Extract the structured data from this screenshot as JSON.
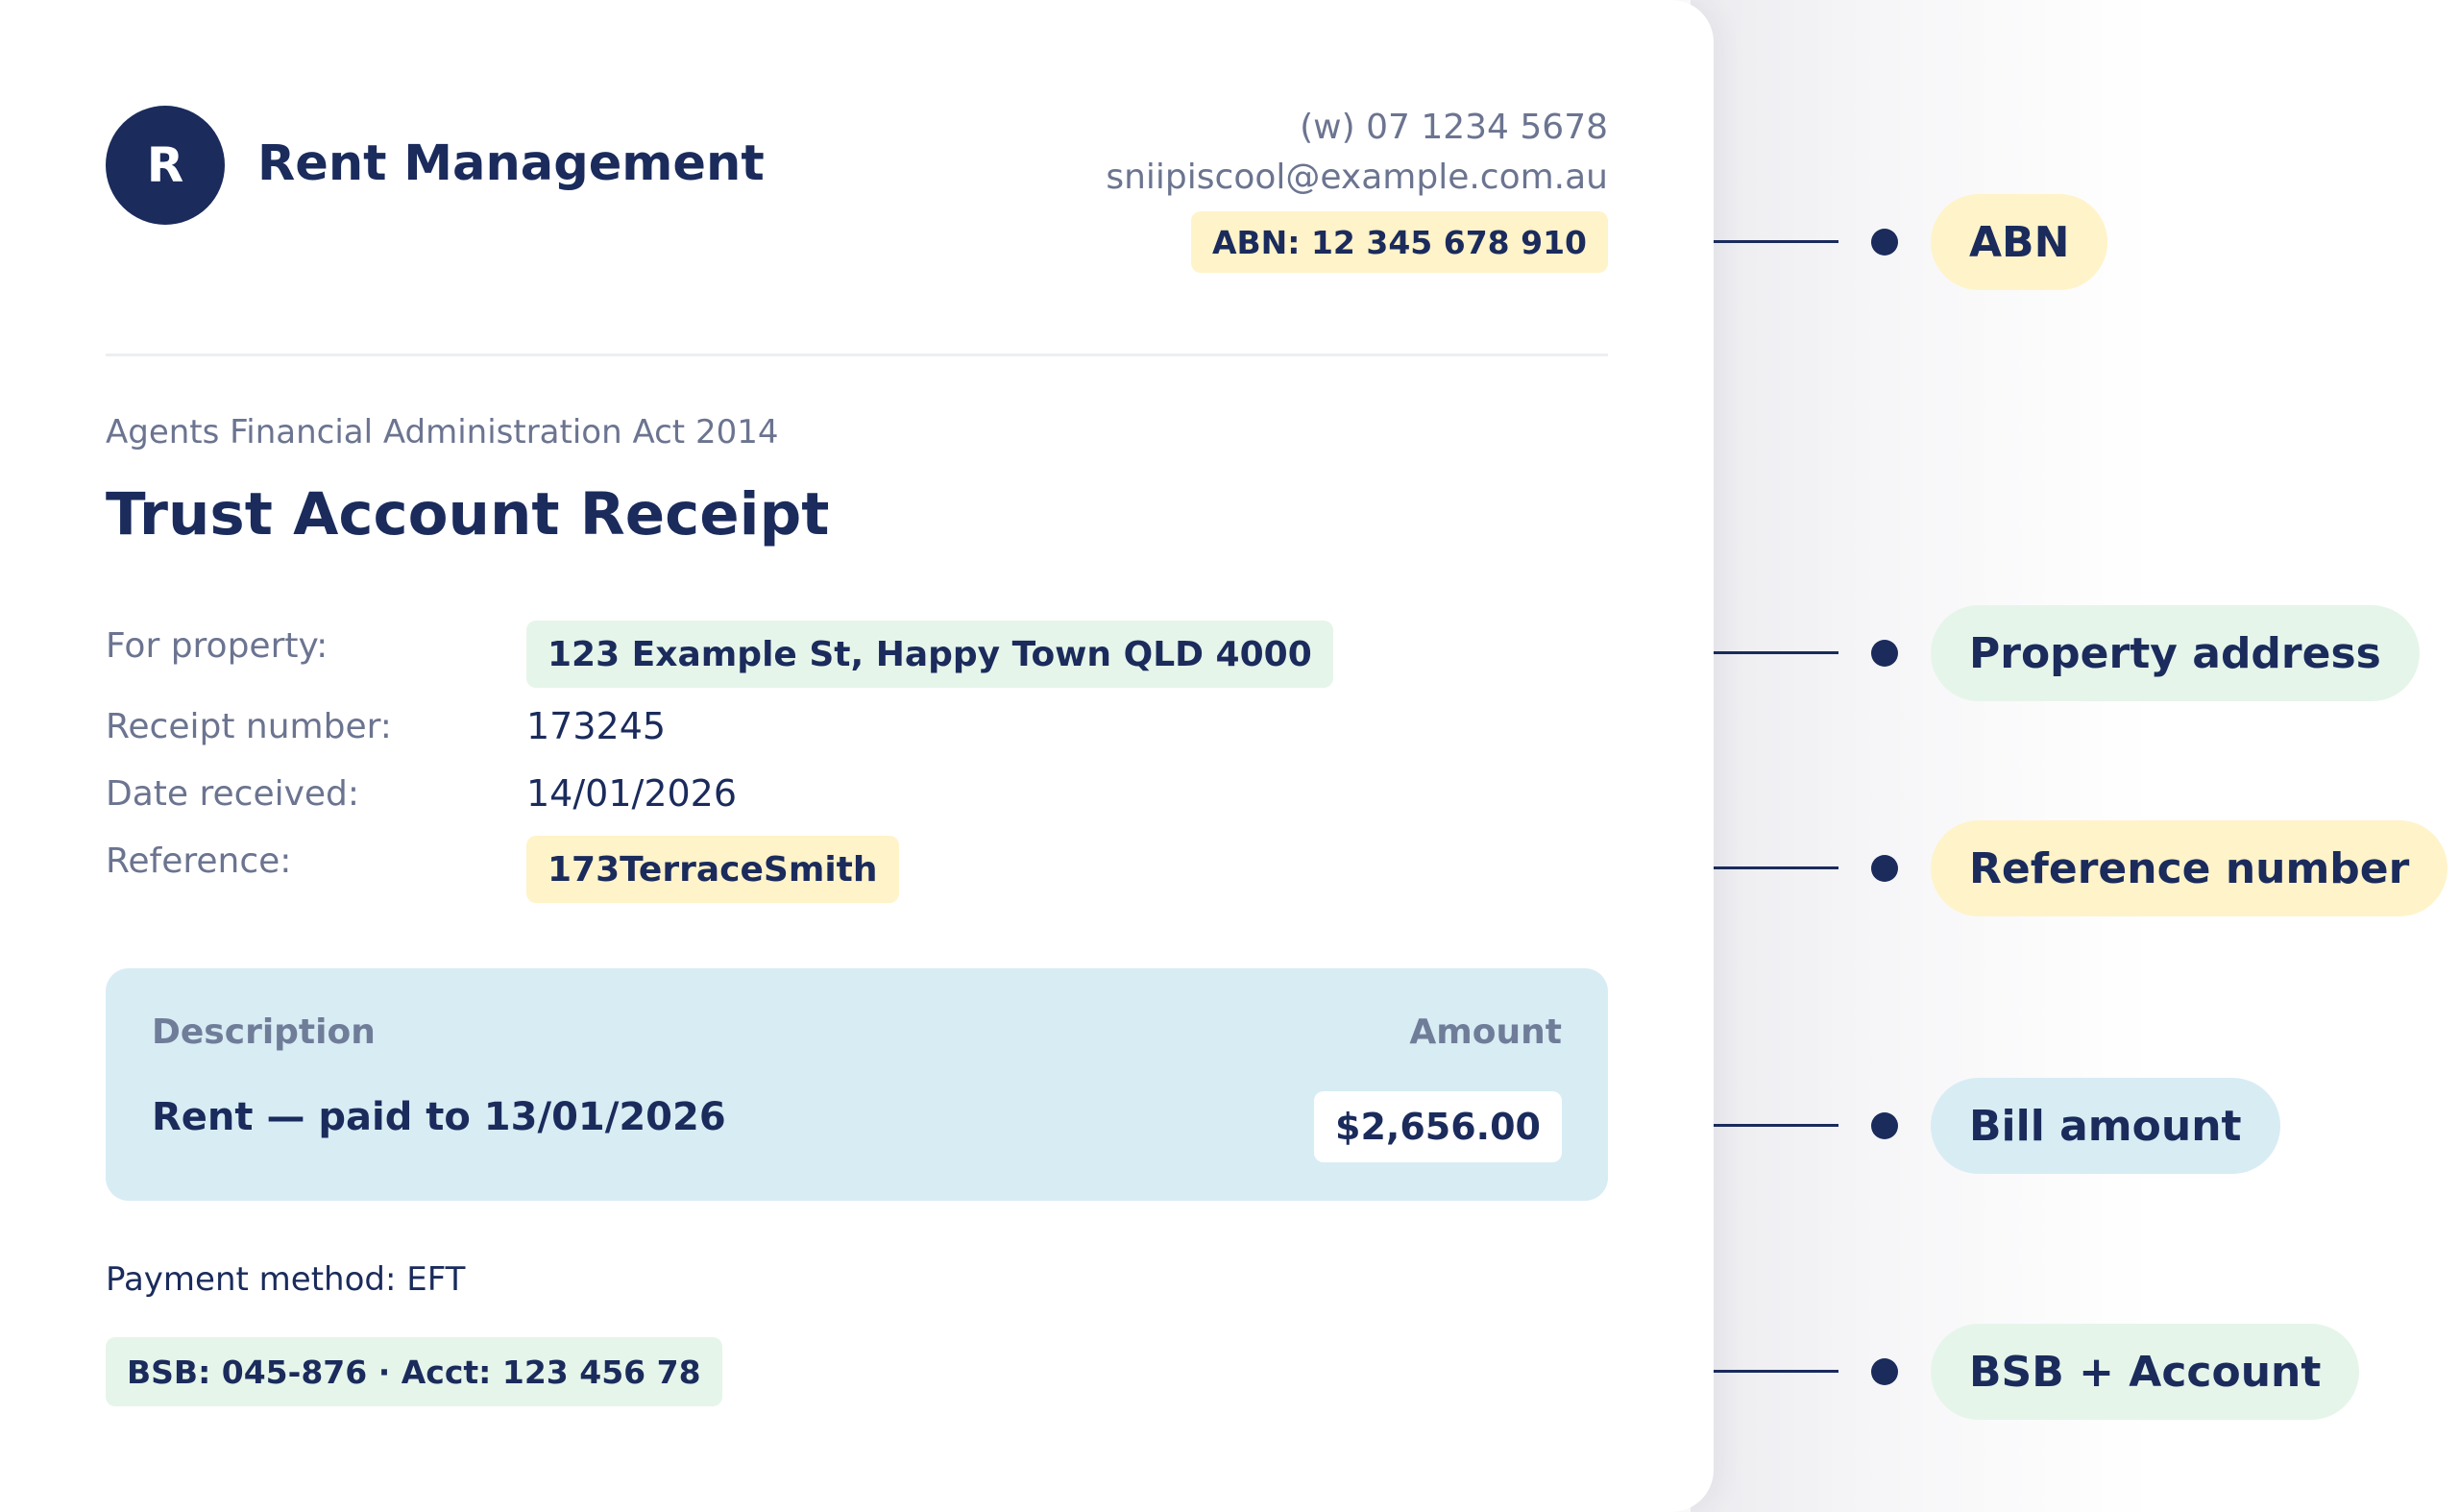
{
  "header": {
    "logo_letter": "R",
    "brand": "Rent Management",
    "phone": "(w) 07 1234 5678",
    "email": "sniipiscool@example.com.au",
    "abn": "ABN: 12 345 678 910"
  },
  "receipt": {
    "act": "Agents Financial Administration Act 2014",
    "title": "Trust Account Receipt",
    "rows": [
      {
        "label": "For property:",
        "value": "123 Example St, Happy Town QLD 4000"
      },
      {
        "label": "Receipt number:",
        "value": "173245"
      },
      {
        "label": "Date received:",
        "value": "14/01/2026"
      },
      {
        "label": "Reference:",
        "value": "173TerraceSmith"
      }
    ]
  },
  "table": {
    "col_description": "Description",
    "col_amount": "Amount",
    "line_description": "Rent — paid to 13/01/2026",
    "line_amount": "$2,656.00"
  },
  "payment": {
    "method": "Payment method: EFT",
    "bank": "BSB: 045-876 · Acct: 123 456 78"
  },
  "callouts": [
    {
      "label": "ABN",
      "color": "#fff3c9"
    },
    {
      "label": "Property address",
      "color": "#e6f5ea"
    },
    {
      "label": "Reference number",
      "color": "#fff3c9"
    },
    {
      "label": "Bill amount",
      "color": "#d8ecf4"
    },
    {
      "label": "BSB + Account",
      "color": "#e6f5ea"
    }
  ],
  "colors": {
    "navy": "#1a2b5c",
    "muted": "#6b7490",
    "highlight_yellow": "#fff3c9",
    "highlight_green": "#e6f5ea",
    "highlight_blue": "#d8ecf4"
  }
}
